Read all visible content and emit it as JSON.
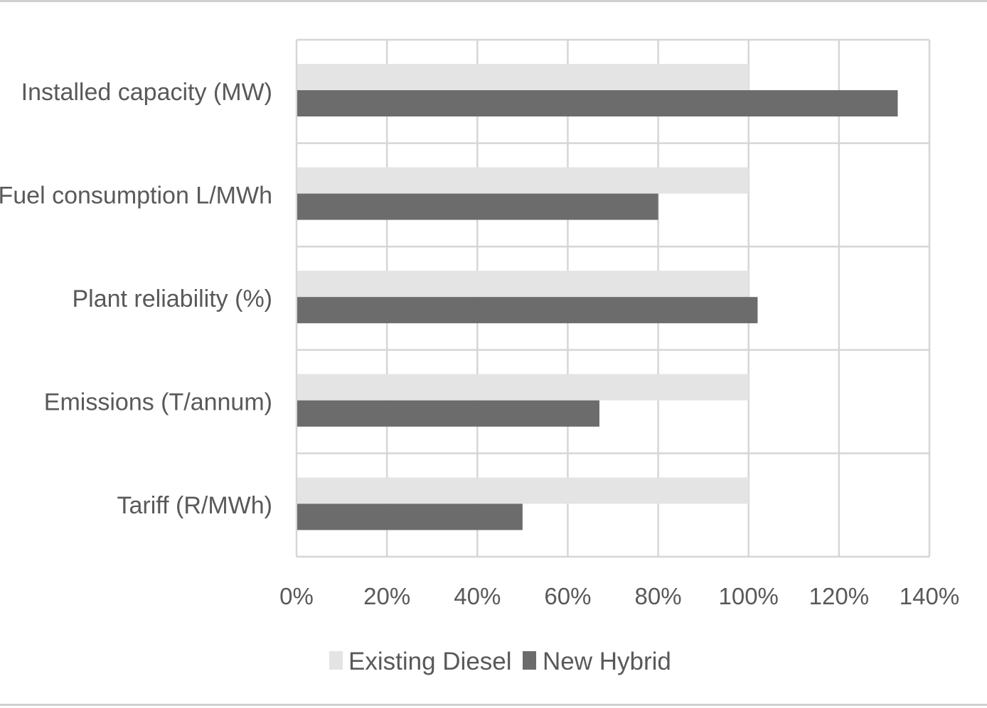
{
  "chart_data": {
    "type": "bar",
    "orientation": "horizontal",
    "categories": [
      "Installed capacity (MW)",
      "Fuel consumption L/MWh",
      "Plant reliability (%)",
      "Emissions (T/annum)",
      "Tariff (R/MWh)"
    ],
    "series": [
      {
        "name": "Existing Diesel",
        "color": "#e4e4e4",
        "values": [
          100,
          100,
          100,
          100,
          100
        ]
      },
      {
        "name": "New Hybrid",
        "color": "#6c6c6c",
        "values": [
          133,
          80,
          102,
          67,
          50
        ]
      }
    ],
    "x_ticks": [
      "0%",
      "20%",
      "40%",
      "60%",
      "80%",
      "100%",
      "120%",
      "140%"
    ],
    "xlim": [
      0,
      140
    ],
    "grid": true,
    "legend_position": "bottom",
    "title": "",
    "xlabel": "",
    "ylabel": ""
  }
}
